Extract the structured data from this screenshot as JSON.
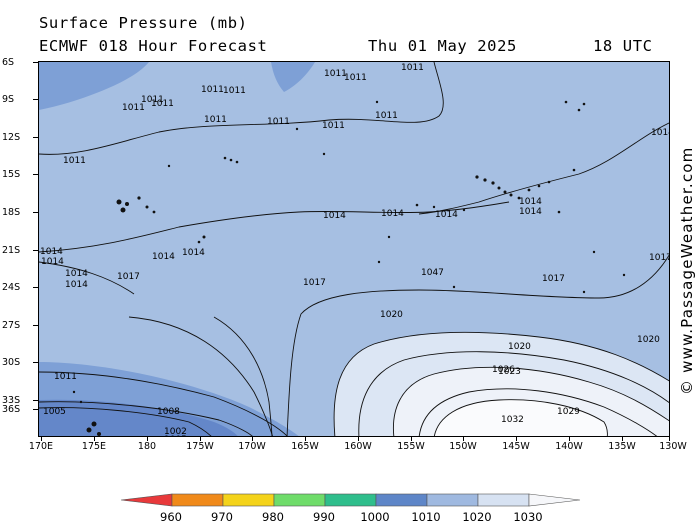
{
  "header": {
    "title_line1": "Surface Pressure (mb)",
    "title_line2": "ECMWF 018 Hour Forecast",
    "date": "Thu 01 May 2025",
    "time": "18 UTC"
  },
  "watermark": "© www.PassageWeather.com",
  "latitude_labels": [
    "6S",
    "9S",
    "12S",
    "15S",
    "18S",
    "21S",
    "24S",
    "27S",
    "30S",
    "33S",
    "36S"
  ],
  "longitude_labels": [
    "170E",
    "175E",
    "180",
    "175W",
    "170W",
    "165W",
    "160W",
    "155W",
    "150W",
    "145W",
    "140W",
    "135W",
    "130W"
  ],
  "legend": {
    "labels": [
      "960",
      "970",
      "980",
      "990",
      "1000",
      "1010",
      "1020",
      "1030"
    ],
    "colors": [
      "#e8393b",
      "#f08a1a",
      "#f4d31a",
      "#6fdc6a",
      "#2fbe8c",
      "#5e86c8",
      "#9fb9e0",
      "#d7e2f2",
      "#f6f7fa"
    ]
  },
  "pressure_fill_colors": {
    "le_1005": "#6487c9",
    "1005_1010": "#7ea0d6",
    "1010_1020": "#a6bfe2",
    "1020_1025": "#dce6f4",
    "1025_1030": "#eef2f9",
    "ge_1030": "#fafbfd"
  },
  "isobar_labels": [
    "1011",
    "1011",
    "1011",
    "1011",
    "1011",
    "1011",
    "1011",
    "1011",
    "1011",
    "1011",
    "1011",
    "1011",
    "1011",
    "1011",
    "1014",
    "1014",
    "1014",
    "1014",
    "1014",
    "1014",
    "1014",
    "1014",
    "1014",
    "1014",
    "1014",
    "1014",
    "1017",
    "1017",
    "1017",
    "1017",
    "1047",
    "1020",
    "1020",
    "1020",
    "1023",
    "1026",
    "1029",
    "1032",
    "1008",
    "1005",
    "1005",
    "1002"
  ]
}
